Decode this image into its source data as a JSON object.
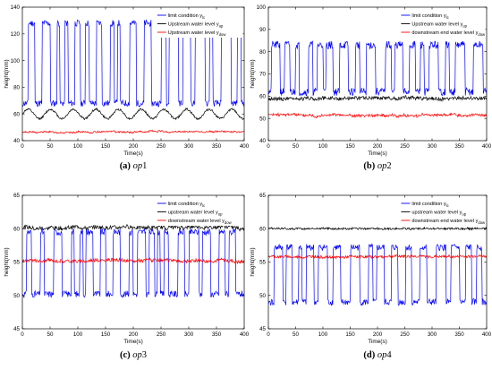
{
  "chart_data": [
    {
      "type": "line",
      "caption": {
        "letter": "(a)",
        "name": "op1"
      },
      "xlabel": "Time(s)",
      "ylabel": "height(mm)",
      "xlim": [
        0,
        400
      ],
      "ylim": [
        40,
        140
      ],
      "xticks": [
        0,
        50,
        100,
        150,
        200,
        250,
        300,
        350,
        400
      ],
      "yticks": [
        40,
        60,
        80,
        100,
        120,
        140
      ],
      "grid": false,
      "legend": "top-right",
      "series": [
        {
          "name": "limit condition y",
          "name_sub": "lc",
          "color": "#0000ff",
          "style": "square",
          "base": 68,
          "high": 128,
          "noise": 2.5,
          "seed": 11
        },
        {
          "name": "Upstream water level y",
          "name_sub": "up",
          "color": "#000000",
          "style": "wave",
          "base": 60,
          "amp": 3.5,
          "noise": 0.8,
          "seed": 12
        },
        {
          "name": "Upstream water level y",
          "name_sub": "dow",
          "color": "#ff0000",
          "style": "noisy",
          "base": 46.5,
          "amp": 1.2,
          "noise": 0.6,
          "seed": 13
        }
      ]
    },
    {
      "type": "line",
      "caption": {
        "letter": "(b)",
        "name": "op2"
      },
      "xlabel": "Time(s)",
      "ylabel": "height(mm)",
      "xlim": [
        0,
        400
      ],
      "ylim": [
        40,
        100
      ],
      "xticks": [
        0,
        50,
        100,
        150,
        200,
        250,
        300,
        350,
        400
      ],
      "yticks": [
        40,
        50,
        60,
        70,
        80,
        90,
        100
      ],
      "grid": false,
      "legend": "top-right",
      "series": [
        {
          "name": "limit condition y",
          "name_sub": "lc",
          "color": "#0000ff",
          "style": "square",
          "base": 62,
          "high": 83,
          "noise": 1.8,
          "seed": 21
        },
        {
          "name": "Upstream water level y",
          "name_sub": "up",
          "color": "#000000",
          "style": "noisy",
          "base": 59,
          "amp": 1.0,
          "noise": 0.8,
          "seed": 22
        },
        {
          "name": "downstream end water level y",
          "name_sub": "dow",
          "color": "#ff0000",
          "style": "noisy",
          "base": 51.5,
          "amp": 1.2,
          "noise": 0.6,
          "seed": 23
        }
      ]
    },
    {
      "type": "line",
      "caption": {
        "letter": "(c)",
        "name": "op3"
      },
      "xlabel": "Time(s)",
      "ylabel": "height(mm)",
      "xlim": [
        0,
        400
      ],
      "ylim": [
        45,
        65
      ],
      "xticks": [
        0,
        50,
        100,
        150,
        200,
        250,
        300,
        350,
        400
      ],
      "yticks": [
        45,
        50,
        55,
        60,
        65
      ],
      "grid": false,
      "legend": "top-right",
      "series": [
        {
          "name": "limit condition y",
          "name_sub": "lc",
          "color": "#0000ff",
          "style": "square",
          "base": 50.2,
          "high": 59.5,
          "noise": 0.5,
          "seed": 31
        },
        {
          "name": "upstream water level y",
          "name_sub": "up",
          "color": "#000000",
          "style": "noisy",
          "base": 60.2,
          "amp": 0.4,
          "noise": 0.3,
          "seed": 32
        },
        {
          "name": "downstream water level y",
          "name_sub": "dow",
          "color": "#ff0000",
          "style": "noisy",
          "base": 55.2,
          "amp": 0.4,
          "noise": 0.25,
          "seed": 33
        }
      ]
    },
    {
      "type": "line",
      "caption": {
        "letter": "(d)",
        "name": "op4"
      },
      "xlabel": "Time(s)",
      "ylabel": "height(mm)",
      "xlim": [
        0,
        400
      ],
      "ylim": [
        45,
        65
      ],
      "xticks": [
        0,
        50,
        100,
        150,
        200,
        250,
        300,
        350,
        400
      ],
      "yticks": [
        45,
        50,
        55,
        60,
        65
      ],
      "grid": false,
      "legend": "top-right",
      "series": [
        {
          "name": "limit condition y",
          "name_sub": "lc",
          "color": "#0000ff",
          "style": "square",
          "base": 49,
          "high": 57.2,
          "noise": 0.5,
          "seed": 41
        },
        {
          "name": "upstream water level y",
          "name_sub": "up",
          "color": "#000000",
          "style": "noisy",
          "base": 60,
          "amp": 0.15,
          "noise": 0.15,
          "seed": 42
        },
        {
          "name": "downstream end water level y",
          "name_sub": "dow",
          "color": "#ff0000",
          "style": "noisy",
          "base": 55.8,
          "amp": 0.25,
          "noise": 0.2,
          "seed": 43
        }
      ]
    }
  ]
}
